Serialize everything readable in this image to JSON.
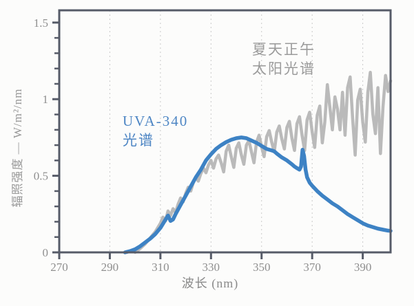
{
  "page": {
    "background": "#fcfcfb"
  },
  "chart_data": {
    "type": "line",
    "title": "",
    "xlabel": "波长 (nm)",
    "ylabel": "辐照强度 — W/m²/nm",
    "xlim": [
      270,
      401
    ],
    "ylim": [
      0,
      1.58
    ],
    "x_ticks": [
      270,
      290,
      310,
      330,
      350,
      370,
      390
    ],
    "x_tick_labels": [
      "270",
      "290",
      "310",
      "330",
      "350",
      "370",
      "390"
    ],
    "y_ticks_major": [
      0,
      0.5,
      1,
      1.5
    ],
    "y_tick_labels": [
      "0",
      "0.5",
      "1",
      "1.5"
    ],
    "y_minor_tick_step": 0.1,
    "grid": {
      "vertical_dashed_at_x_ticks": true,
      "horizontal": false
    },
    "legend_position": "inline-annotations",
    "colors": {
      "axis": "#565b68",
      "grid": "#c9c9c9",
      "tick_label": "#8f8f8f",
      "background": "#fcfcfb"
    },
    "series": [
      {
        "name": "夏天正午太阳光谱",
        "label_line1": "夏天正午",
        "label_line2": "太阳光谱",
        "color": "#b4b4b4",
        "label_color": "#9b9b9b",
        "stroke_width": 4.5,
        "points": [
          [
            300,
            0
          ],
          [
            302,
            0.025
          ],
          [
            304,
            0.055
          ],
          [
            306,
            0.095
          ],
          [
            308,
            0.135
          ],
          [
            310,
            0.19
          ],
          [
            311,
            0.23
          ],
          [
            312,
            0.205
          ],
          [
            313,
            0.27
          ],
          [
            314,
            0.24
          ],
          [
            315,
            0.285
          ],
          [
            316,
            0.26
          ],
          [
            317,
            0.315
          ],
          [
            318,
            0.355
          ],
          [
            319,
            0.33
          ],
          [
            320,
            0.385
          ],
          [
            321,
            0.425
          ],
          [
            322,
            0.4
          ],
          [
            323,
            0.455
          ],
          [
            324,
            0.49
          ],
          [
            325,
            0.465
          ],
          [
            326,
            0.515
          ],
          [
            327,
            0.55
          ],
          [
            328,
            0.52
          ],
          [
            329,
            0.57
          ],
          [
            330,
            0.6
          ],
          [
            331,
            0.55
          ],
          [
            332,
            0.61
          ],
          [
            333,
            0.635
          ],
          [
            334,
            0.585
          ],
          [
            335,
            0.525
          ],
          [
            336,
            0.66
          ],
          [
            337,
            0.7
          ],
          [
            338,
            0.625
          ],
          [
            339,
            0.555
          ],
          [
            340,
            0.68
          ],
          [
            341,
            0.715
          ],
          [
            342,
            0.635
          ],
          [
            343,
            0.575
          ],
          [
            344,
            0.7
          ],
          [
            345,
            0.73
          ],
          [
            346,
            0.655
          ],
          [
            347,
            0.585
          ],
          [
            348,
            0.72
          ],
          [
            349,
            0.765
          ],
          [
            350,
            0.69
          ],
          [
            351,
            0.625
          ],
          [
            352,
            0.755
          ],
          [
            353,
            0.795
          ],
          [
            354,
            0.72
          ],
          [
            355,
            0.655
          ],
          [
            356,
            0.785
          ],
          [
            357,
            0.825
          ],
          [
            358,
            0.74
          ],
          [
            359,
            0.675
          ],
          [
            360,
            0.815
          ],
          [
            361,
            0.855
          ],
          [
            362,
            0.745
          ],
          [
            363,
            0.665
          ],
          [
            364,
            0.84
          ],
          [
            365,
            0.885
          ],
          [
            366,
            0.765
          ],
          [
            367,
            0.665
          ],
          [
            368,
            0.865
          ],
          [
            369,
            0.915
          ],
          [
            370,
            0.785
          ],
          [
            371,
            0.685
          ],
          [
            372,
            0.895
          ],
          [
            373,
            0.955
          ],
          [
            374,
            0.715
          ],
          [
            375,
            0.85
          ],
          [
            376,
            1.095
          ],
          [
            377,
            0.945
          ],
          [
            378,
            0.8
          ],
          [
            379,
            1.015
          ],
          [
            380,
            0.935
          ],
          [
            381,
            0.8
          ],
          [
            382,
            1.045
          ],
          [
            383,
            0.765
          ],
          [
            384,
            1.075
          ],
          [
            385,
            1.145
          ],
          [
            386,
            0.875
          ],
          [
            387,
            0.635
          ],
          [
            388,
            0.995
          ],
          [
            389,
            1.065
          ],
          [
            390,
            0.85
          ],
          [
            391,
            0.72
          ],
          [
            392,
            1.045
          ],
          [
            393,
            1.175
          ],
          [
            394,
            0.9
          ],
          [
            395,
            0.775
          ],
          [
            396,
            1.075
          ],
          [
            397,
            0.645
          ],
          [
            398,
            0.95
          ],
          [
            399,
            1.155
          ],
          [
            400,
            1.05
          ],
          [
            401,
            1.12
          ]
        ]
      },
      {
        "name": "UVA-340 光谱",
        "label_line1": "UVA-340",
        "label_line2": "光谱",
        "color": "#3d82c4",
        "label_color": "#4e86c4",
        "stroke_width": 5.5,
        "points": [
          [
            296,
            0
          ],
          [
            298,
            0.008
          ],
          [
            300,
            0.02
          ],
          [
            302,
            0.04
          ],
          [
            304,
            0.065
          ],
          [
            306,
            0.09
          ],
          [
            308,
            0.12
          ],
          [
            310,
            0.16
          ],
          [
            311.5,
            0.2
          ],
          [
            313,
            0.24
          ],
          [
            314,
            0.205
          ],
          [
            315,
            0.215
          ],
          [
            316,
            0.25
          ],
          [
            318,
            0.31
          ],
          [
            320,
            0.37
          ],
          [
            322,
            0.43
          ],
          [
            324,
            0.49
          ],
          [
            326,
            0.54
          ],
          [
            328,
            0.6
          ],
          [
            330,
            0.64
          ],
          [
            332,
            0.675
          ],
          [
            334,
            0.7
          ],
          [
            336,
            0.72
          ],
          [
            338,
            0.735
          ],
          [
            340,
            0.745
          ],
          [
            342,
            0.75
          ],
          [
            344,
            0.745
          ],
          [
            346,
            0.73
          ],
          [
            348,
            0.715
          ],
          [
            350,
            0.695
          ],
          [
            352,
            0.675
          ],
          [
            354,
            0.665
          ],
          [
            355,
            0.66
          ],
          [
            356,
            0.645
          ],
          [
            358,
            0.62
          ],
          [
            360,
            0.6
          ],
          [
            362,
            0.575
          ],
          [
            363,
            0.56
          ],
          [
            364,
            0.55
          ],
          [
            365,
            0.54
          ],
          [
            365.6,
            0.56
          ],
          [
            366.2,
            0.67
          ],
          [
            366.8,
            0.63
          ],
          [
            367.4,
            0.54
          ],
          [
            368,
            0.49
          ],
          [
            369,
            0.455
          ],
          [
            370,
            0.435
          ],
          [
            372,
            0.4
          ],
          [
            374,
            0.37
          ],
          [
            376,
            0.345
          ],
          [
            378,
            0.32
          ],
          [
            380,
            0.3
          ],
          [
            382,
            0.275
          ],
          [
            384,
            0.25
          ],
          [
            386,
            0.23
          ],
          [
            388,
            0.21
          ],
          [
            390,
            0.19
          ],
          [
            392,
            0.175
          ],
          [
            394,
            0.165
          ],
          [
            396,
            0.155
          ],
          [
            398,
            0.148
          ],
          [
            400,
            0.142
          ],
          [
            401,
            0.14
          ]
        ]
      }
    ]
  }
}
